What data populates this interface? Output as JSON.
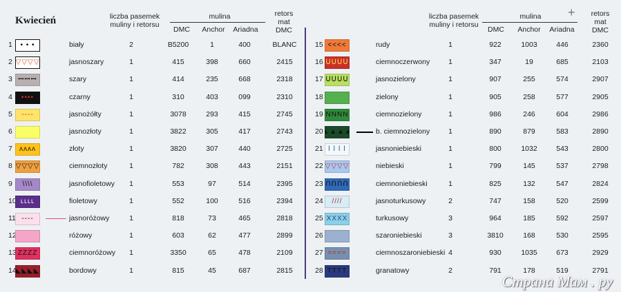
{
  "title": "Kwiecień",
  "headers": {
    "strands": "liczba pasemek muliny i retorsu",
    "mulina": "mulina",
    "dmc": "DMC",
    "anchor": "Anchor",
    "ariadna": "Ariadna",
    "retors": "retors mat DMC"
  },
  "rows_left": [
    {
      "num": "1",
      "symbol": "• • •",
      "bg": "#ffffff",
      "fg": "#000000",
      "name": "biały",
      "count": "2",
      "dmc": "B5200",
      "anchor": "1",
      "ariadna": "400",
      "retors": "BLANC"
    },
    {
      "num": "2",
      "symbol": "▽▽▽▽",
      "bg": "#ffffff",
      "fg": "#d05030",
      "name": "jasnoszary",
      "count": "1",
      "dmc": "415",
      "anchor": "398",
      "ariadna": "660",
      "retors": "2415"
    },
    {
      "num": "3",
      "symbol": "ꟷꟷꟷ",
      "bg": "#b8b0b0",
      "fg": "#000000",
      "name": "szary",
      "count": "1",
      "dmc": "414",
      "anchor": "235",
      "ariadna": "668",
      "retors": "2318"
    },
    {
      "num": "4",
      "symbol": "▪▪▪▪",
      "bg": "#111111",
      "fg": "#c03020",
      "name": "czarny",
      "count": "1",
      "dmc": "310",
      "anchor": "403",
      "ariadna": "099",
      "retors": "2310"
    },
    {
      "num": "5",
      "symbol": "----",
      "bg": "#ffe46a",
      "fg": "#c03020",
      "name": "jasnożółty",
      "count": "1",
      "dmc": "3078",
      "anchor": "293",
      "ariadna": "415",
      "retors": "2745"
    },
    {
      "num": "6",
      "symbol": "",
      "bg": "#fbff66",
      "fg": "#000000",
      "name": "jasnozłoty",
      "count": "1",
      "dmc": "3822",
      "anchor": "305",
      "ariadna": "417",
      "retors": "2743"
    },
    {
      "num": "7",
      "symbol": "ᴧᴧᴧᴧ",
      "bg": "#ffc21a",
      "fg": "#111111",
      "name": "złoty",
      "count": "1",
      "dmc": "3820",
      "anchor": "307",
      "ariadna": "440",
      "retors": "2725"
    },
    {
      "num": "8",
      "symbol": "▽▽▽▽",
      "bg": "#f0a040",
      "fg": "#111111",
      "name": "ciemnozłoty",
      "count": "1",
      "dmc": "782",
      "anchor": "308",
      "ariadna": "443",
      "retors": "2151"
    },
    {
      "num": "9",
      "symbol": "\\\\\\\\",
      "bg": "#a489c8",
      "fg": "#111111",
      "name": "jasnofioletowy",
      "count": "1",
      "dmc": "553",
      "anchor": "97",
      "ariadna": "514",
      "retors": "2395"
    },
    {
      "num": "10",
      "symbol": "ʟʟʟʟ",
      "bg": "#5a2f8a",
      "fg": "#ffffff",
      "name": "fioletowy",
      "count": "1",
      "dmc": "552",
      "anchor": "100",
      "ariadna": "516",
      "retors": "2394"
    },
    {
      "num": "11",
      "symbol": "----",
      "bg": "#fbe0ec",
      "fg": "#111111",
      "name": "jasnoróżowy",
      "count": "1",
      "dmc": "818",
      "anchor": "73",
      "ariadna": "465",
      "retors": "2818"
    },
    {
      "num": "12",
      "symbol": "",
      "bg": "#f4a6c8",
      "fg": "#000000",
      "name": "różowy",
      "count": "1",
      "dmc": "603",
      "anchor": "62",
      "ariadna": "477",
      "retors": "2899"
    },
    {
      "num": "13",
      "symbol": "ZZZZ",
      "bg": "#e03060",
      "fg": "#111111",
      "name": "ciemnoróżowy",
      "count": "1",
      "dmc": "3350",
      "anchor": "65",
      "ariadna": "478",
      "retors": "2109"
    },
    {
      "num": "14",
      "symbol": "◣◣◣◣",
      "bg": "#9a1f2a",
      "fg": "#111111",
      "name": "bordowy",
      "count": "1",
      "dmc": "815",
      "anchor": "45",
      "ariadna": "687",
      "retors": "2815"
    }
  ],
  "rows_right": [
    {
      "num": "15",
      "symbol": "<<<<",
      "bg": "#f07a38",
      "fg": "#111111",
      "name": "rudy",
      "count": "1",
      "dmc": "922",
      "anchor": "1003",
      "ariadna": "446",
      "retors": "2360"
    },
    {
      "num": "16",
      "symbol": "ᑌᑌᑌᑌ",
      "bg": "#c83028",
      "fg": "#ffdd55",
      "name": "ciemnoczerwony",
      "count": "1",
      "dmc": "347",
      "anchor": "19",
      "ariadna": "685",
      "retors": "2103"
    },
    {
      "num": "17",
      "symbol": "ᑌᑌᑌᑌ",
      "bg": "#b8e060",
      "fg": "#111111",
      "name": "jasnozielony",
      "count": "1",
      "dmc": "907",
      "anchor": "255",
      "ariadna": "574",
      "retors": "2907"
    },
    {
      "num": "18",
      "symbol": "",
      "bg": "#55b050",
      "fg": "#000000",
      "name": "zielony",
      "count": "1",
      "dmc": "905",
      "anchor": "258",
      "ariadna": "577",
      "retors": "2905"
    },
    {
      "num": "19",
      "symbol": "NNNN",
      "bg": "#2f8a3a",
      "fg": "#111111",
      "name": "ciemnozielony",
      "count": "1",
      "dmc": "986",
      "anchor": "246",
      "ariadna": "604",
      "retors": "2986"
    },
    {
      "num": "20",
      "symbol": "▲▲▲▲",
      "bg": "#1a4a28",
      "fg": "#111111",
      "name": "b. ciemnozielony",
      "count": "1",
      "dmc": "890",
      "anchor": "879",
      "ariadna": "583",
      "retors": "2890"
    },
    {
      "num": "21",
      "symbol": "ǀ ǀ ǀ ǀ",
      "bg": "#f2f8fc",
      "fg": "#1a5a6a",
      "name": "jasnoniebieski",
      "count": "1",
      "dmc": "800",
      "anchor": "1032",
      "ariadna": "543",
      "retors": "2800"
    },
    {
      "num": "22",
      "symbol": "▽▽▽▽",
      "bg": "#a8c8f0",
      "fg": "#c03020",
      "name": "niebieski",
      "count": "1",
      "dmc": "799",
      "anchor": "145",
      "ariadna": "537",
      "retors": "2798"
    },
    {
      "num": "23",
      "symbol": "ՈՈՈՈ",
      "bg": "#2f6ab8",
      "fg": "#111111",
      "name": "ciemnoniebieski",
      "count": "1",
      "dmc": "825",
      "anchor": "132",
      "ariadna": "547",
      "retors": "2824"
    },
    {
      "num": "24",
      "symbol": "////",
      "bg": "#d8ecf6",
      "fg": "#b03020",
      "name": "jasnoturkusowy",
      "count": "2",
      "dmc": "747",
      "anchor": "158",
      "ariadna": "520",
      "retors": "2599"
    },
    {
      "num": "25",
      "symbol": "XXXX",
      "bg": "#8ad0e8",
      "fg": "#2a4a8a",
      "name": "turkusowy",
      "count": "3",
      "dmc": "964",
      "anchor": "185",
      "ariadna": "592",
      "retors": "2597"
    },
    {
      "num": "26",
      "symbol": "",
      "bg": "#9cb0d0",
      "fg": "#000000",
      "name": "szaroniebieski",
      "count": "3",
      "dmc": "3810",
      "anchor": "168",
      "ariadna": "530",
      "retors": "2595"
    },
    {
      "num": "27",
      "symbol": "====",
      "bg": "#7890b0",
      "fg": "#b03020",
      "name": "ciemnoszaroniebieski",
      "count": "4",
      "dmc": "930",
      "anchor": "1035",
      "ariadna": "673",
      "retors": "2929"
    },
    {
      "num": "28",
      "symbol": "TTTT",
      "bg": "#2a3a80",
      "fg": "#111111",
      "name": "granatowy",
      "count": "2",
      "dmc": "791",
      "anchor": "178",
      "ariadna": "519",
      "retors": "2791"
    }
  ],
  "watermark": "Страна Мам . ру",
  "colors": {
    "background": "#eef1f4",
    "divider": "#4b3a7a",
    "pointer_11": "#e05070",
    "pointer_20": "#000000"
  }
}
